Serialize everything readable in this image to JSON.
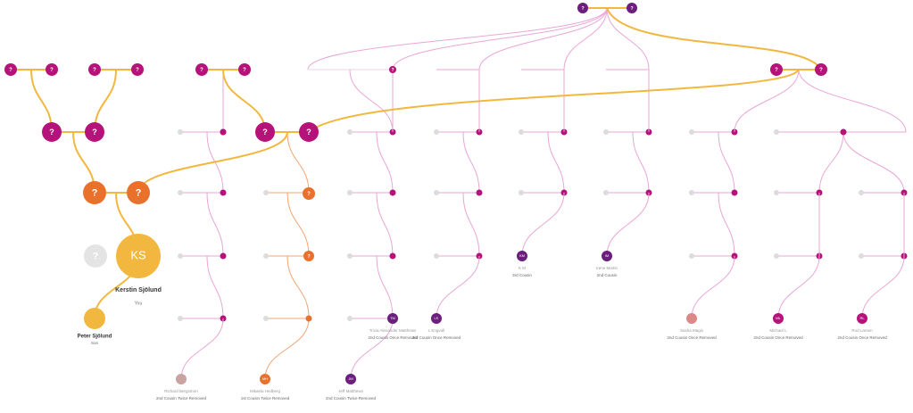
{
  "question_nodes": [
    "?",
    "?",
    "?",
    "?",
    "?",
    "?",
    "?",
    "?",
    "?",
    "?",
    "?",
    "?",
    "?",
    "?",
    "?",
    "?",
    "?",
    "?",
    "?",
    "?"
  ],
  "you": {
    "initials": "KS",
    "name": "Kerstin Sjölund",
    "relation": "You"
  },
  "relatives": [
    {
      "name": "Peter Sjölund",
      "relation": "Son"
    },
    {
      "name": "Richard Bergstrom",
      "relation": "2nd Cousin Twice Removed"
    },
    {
      "initials": "MH",
      "name": "Mikaela Hedberg",
      "relation": "1st Cousin Twice Removed"
    },
    {
      "initials": "JM",
      "name": "Jeff Matthews",
      "relation": "2nd Cousin Twice Removed"
    },
    {
      "initials": "TM",
      "name": "Tricia Alexander Matthews",
      "relation": "2nd Cousin Once Removed"
    },
    {
      "initials": "LE",
      "name": "L Engvall",
      "relation": "3rd Cousin Once Removed"
    },
    {
      "initials": "KM",
      "name": "K M",
      "relation": "3rd Cousin"
    },
    {
      "initials": "IM",
      "name": "Irene Martin",
      "relation": "2nd Cousin"
    },
    {
      "name": "Sasha Magis",
      "relation": "2nd Cousin Once Removed"
    },
    {
      "initials": "ML",
      "name": "Michael L",
      "relation": "2nd Cousin Once Removed"
    },
    {
      "initials": "RL",
      "name": "Rod Larsen",
      "relation": "2nd Cousin Once Removed"
    }
  ]
}
